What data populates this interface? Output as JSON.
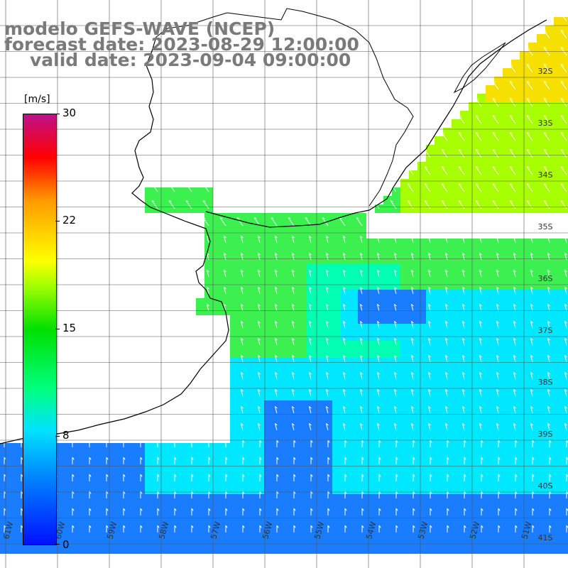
{
  "header": {
    "model": "modelo GEFS-WAVE (NCEP)",
    "forecast": "forecast date: 2023-08-29 12:00:00",
    "valid": "valid date: 2023-09-04 09:00:00"
  },
  "colorbar": {
    "unit": "[m/s]",
    "min": 0,
    "max": 30,
    "ticks": [
      "30",
      "22",
      "15",
      "8",
      "0"
    ],
    "tick_values": [
      30,
      22,
      15,
      8,
      0
    ],
    "colors": [
      "#0010ff",
      "#0080ff",
      "#00e4ff",
      "#00ff80",
      "#00e000",
      "#a0ff00",
      "#ffff00",
      "#ff9a00",
      "#ff0000",
      "#c0108a"
    ]
  },
  "map": {
    "lat_labels": [
      "32S",
      "33S",
      "34S",
      "35S",
      "36S",
      "37S",
      "38S",
      "39S",
      "40S",
      "41S"
    ],
    "lon_labels": [
      "61W",
      "60W",
      "59W",
      "58W",
      "57W",
      "56W",
      "55W",
      "54W",
      "53W",
      "52W",
      "51W"
    ],
    "field_colors": {
      "blue": "#1a7cff",
      "deep_blue": "#0048ff",
      "cyan": "#00e8ff",
      "cyan_green": "#00ffb0",
      "green": "#3cf050",
      "lime": "#a8ff00",
      "yellow": "#f5e000"
    },
    "arrow_color": "#ffffff",
    "coast_color": "#000000",
    "grid_color": "#555555"
  }
}
